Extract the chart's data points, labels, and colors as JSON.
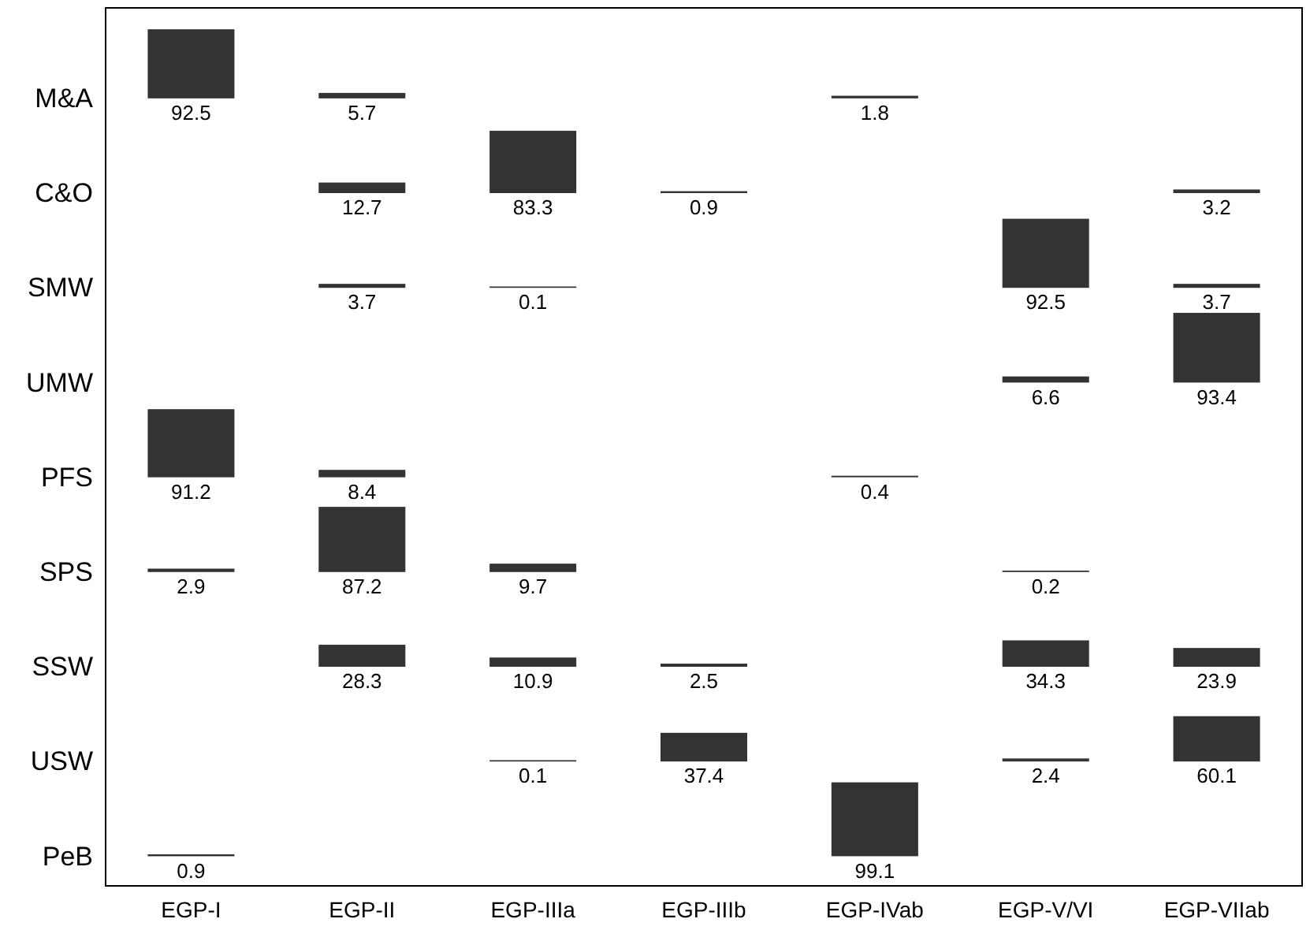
{
  "chart_data": {
    "type": "heatmap",
    "categories": [
      "EGP-I",
      "EGP-II",
      "EGP-IIIa",
      "EGP-IIIb",
      "EGP-IVab",
      "EGP-V/VI",
      "EGP-VIIab"
    ],
    "y_categories": [
      "M&A",
      "C&O",
      "SMW",
      "UMW",
      "PFS",
      "SPS",
      "SSW",
      "USW",
      "PeB"
    ],
    "cells": [
      [
        92.5,
        5.7,
        null,
        null,
        1.8,
        null,
        null
      ],
      [
        null,
        12.7,
        83.3,
        0.9,
        null,
        null,
        3.2
      ],
      [
        null,
        3.7,
        0.1,
        null,
        null,
        92.5,
        3.7
      ],
      [
        null,
        null,
        null,
        null,
        null,
        6.6,
        93.4
      ],
      [
        91.2,
        8.4,
        null,
        null,
        0.4,
        null,
        null
      ],
      [
        2.9,
        87.2,
        9.7,
        null,
        null,
        0.2,
        null
      ],
      [
        null,
        28.3,
        10.9,
        2.5,
        null,
        34.3,
        23.9
      ],
      [
        null,
        null,
        0.1,
        37.4,
        null,
        2.4,
        60.1
      ],
      [
        0.9,
        null,
        null,
        null,
        99.1,
        null,
        null
      ]
    ],
    "color": "#333333",
    "data_labels": true
  }
}
